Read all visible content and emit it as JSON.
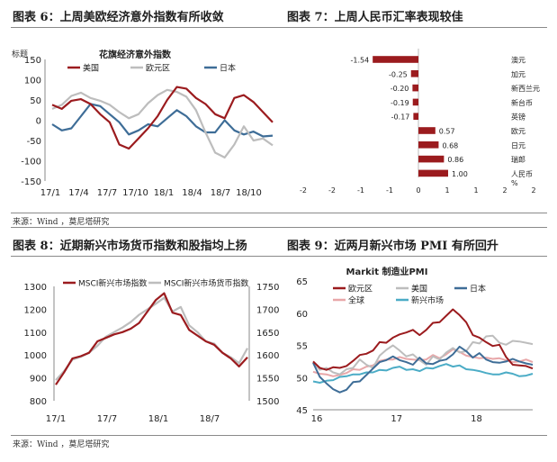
{
  "panels": {
    "p6": {
      "title": "图表 6：上周美欧经济意外指数有所收敛"
    },
    "p7": {
      "title": "图表 7：上周人民币汇率表现较佳"
    },
    "p8": {
      "title": "图表 8：近期新兴市场货币指数和股指均上扬"
    },
    "p9": {
      "title": "图表 9：近两月新兴市场 PMI 有所回升"
    }
  },
  "source_top": "来源：Wind ，莫尼塔研究",
  "source_bottom": "来源：Wind ，莫尼塔研究",
  "colors": {
    "red": "#9B1B1E",
    "gray": "#BDBDBD",
    "blue": "#3E6D97",
    "pink": "#E8A7A9",
    "teal": "#4BACC6"
  },
  "chart_data": [
    {
      "id": "citi-surprise",
      "type": "line",
      "title": "花旗经济意外指数",
      "ylabel": "标题",
      "ylim": [
        -150,
        150
      ],
      "yticks": [
        "150",
        "100",
        "50",
        "0",
        "-50",
        "-100",
        "-150"
      ],
      "xticks": [
        "17/1",
        "17/4",
        "17/7",
        "17/10",
        "18/1",
        "18/4",
        "18/7",
        "18/10"
      ],
      "x": [
        0,
        1,
        2,
        3,
        4,
        5,
        6,
        7,
        8,
        9,
        10,
        11,
        12,
        13,
        14,
        15,
        16,
        17,
        18,
        19,
        20,
        21,
        22,
        23
      ],
      "series": [
        {
          "name": "美国",
          "color": "red",
          "values": [
            38,
            28,
            48,
            52,
            40,
            15,
            -5,
            -60,
            -70,
            -45,
            -20,
            10,
            50,
            82,
            78,
            55,
            40,
            15,
            5,
            55,
            62,
            45,
            20,
            -5
          ]
        },
        {
          "name": "欧元区",
          "color": "gray",
          "values": [
            28,
            38,
            60,
            68,
            55,
            48,
            38,
            20,
            5,
            15,
            42,
            62,
            75,
            70,
            58,
            25,
            -30,
            -80,
            -92,
            -60,
            -15,
            -50,
            -45,
            -62
          ]
        },
        {
          "name": "日本",
          "color": "blue",
          "values": [
            -10,
            -25,
            -20,
            10,
            40,
            35,
            15,
            -5,
            -35,
            -25,
            -10,
            -15,
            5,
            25,
            10,
            -15,
            -30,
            -30,
            0,
            -25,
            -35,
            -28,
            -40,
            -38
          ]
        }
      ]
    },
    {
      "id": "fx-change",
      "type": "bar",
      "orientation": "horizontal",
      "categories": [
        "澳元",
        "加元",
        "新西兰元",
        "新台币",
        "英镑",
        "欧元",
        "日元",
        "瑞郎",
        "人民币"
      ],
      "values": [
        -1.54,
        -0.25,
        -0.2,
        -0.19,
        -0.17,
        0.57,
        0.68,
        0.86,
        1.0
      ],
      "value_labels": [
        "-1.54",
        "-0.25",
        "-0.20",
        "-0.19",
        "-0.17",
        "0.57",
        "0.68",
        "0.86",
        "1.00"
      ],
      "xlim": [
        -2,
        2
      ],
      "xticks": [
        "-2",
        "-2",
        "-1",
        "-1",
        "0",
        "1",
        "1",
        "2",
        "2"
      ],
      "xunit": "%"
    },
    {
      "id": "em-index",
      "type": "line",
      "xticks": [
        "17/1",
        "17/7",
        "18/1",
        "18/7"
      ],
      "yticks_left": [
        "1300",
        "1200",
        "1100",
        "1000",
        "900",
        "800"
      ],
      "yticks_right": [
        "1750",
        "1700",
        "1650",
        "1600",
        "1550",
        "1500"
      ],
      "ylim_left": [
        800,
        1300
      ],
      "ylim_right": [
        1500,
        1750
      ],
      "x": [
        0,
        1,
        2,
        3,
        4,
        5,
        6,
        7,
        8,
        9,
        10,
        11,
        12,
        13,
        14,
        15,
        16,
        17,
        18,
        19,
        20,
        21,
        22,
        23
      ],
      "series": [
        {
          "name": "MSCI新兴市场指数",
          "axis": "left",
          "color": "red",
          "values": [
            870,
            925,
            985,
            995,
            1010,
            1060,
            1075,
            1090,
            1100,
            1115,
            1140,
            1190,
            1240,
            1270,
            1185,
            1175,
            1110,
            1085,
            1060,
            1045,
            1010,
            985,
            950,
            990
          ]
        },
        {
          "name": "MSCI新兴市场货币指数",
          "axis": "right",
          "color": "gray",
          "values": [
            1545,
            1565,
            1590,
            1596,
            1605,
            1620,
            1640,
            1650,
            1660,
            1672,
            1688,
            1700,
            1712,
            1725,
            1695,
            1705,
            1665,
            1650,
            1630,
            1625,
            1605,
            1595,
            1582,
            1615
          ]
        }
      ]
    },
    {
      "id": "markit-pmi",
      "type": "line",
      "title": "Markit 制造业PMI",
      "ylim": [
        45,
        65
      ],
      "yticks": [
        "65",
        "60",
        "55",
        "50",
        "45"
      ],
      "xticks": [
        "16",
        "17",
        "18"
      ],
      "x": [
        0,
        1,
        2,
        3,
        4,
        5,
        6,
        7,
        8,
        9,
        10,
        11,
        12,
        13,
        14,
        15,
        16,
        17,
        18,
        19,
        20,
        21,
        22,
        23,
        24,
        25,
        26,
        27,
        28,
        29,
        30,
        31,
        32,
        33
      ],
      "series": [
        {
          "name": "欧元区",
          "color": "red",
          "values": [
            52.5,
            51.5,
            51.2,
            51.6,
            51.5,
            51.8,
            52.6,
            53.5,
            53.7,
            54.2,
            55.5,
            55.4,
            56.2,
            56.7,
            57.0,
            57.4,
            56.6,
            57.4,
            58.5,
            58.6,
            59.6,
            60.6,
            59.7,
            58.6,
            56.6,
            56.2,
            55.5,
            54.9,
            55.1,
            53.2,
            52.0,
            51.9,
            51.8,
            51.4
          ]
        },
        {
          "name": "美国",
          "color": "gray",
          "values": [
            52.4,
            51.2,
            51.5,
            50.8,
            50.5,
            51.3,
            51.5,
            52.8,
            52.0,
            51.5,
            53.4,
            54.3,
            55.0,
            54.2,
            53.3,
            53.6,
            52.7,
            52.0,
            53.3,
            52.8,
            53.9,
            54.6,
            53.9,
            54.1,
            55.5,
            55.3,
            56.4,
            56.5,
            55.4,
            55.1,
            55.7,
            55.6,
            55.4,
            55.2
          ]
        },
        {
          "name": "日本",
          "color": "blue",
          "values": [
            52.3,
            50.1,
            49.1,
            48.2,
            47.7,
            48.1,
            49.3,
            49.4,
            50.4,
            51.4,
            52.4,
            52.7,
            53.3,
            52.7,
            52.4,
            52.0,
            53.1,
            52.2,
            52.1,
            52.6,
            52.8,
            53.6,
            54.8,
            54.1,
            53.1,
            53.8,
            52.8,
            52.4,
            52.3,
            52.5,
            52.9,
            52.5,
            52.2,
            52.0
          ]
        },
        {
          "name": "全球",
          "color": "pink",
          "values": [
            50.9,
            50.6,
            50.5,
            50.2,
            50.4,
            50.7,
            51.3,
            51.2,
            51.7,
            51.9,
            52.6,
            52.8,
            52.8,
            53.2,
            52.9,
            52.8,
            52.7,
            52.8,
            53.5,
            53.0,
            53.6,
            54.4,
            54.0,
            53.4,
            53.2,
            53.0,
            53.1,
            52.9,
            53.0,
            52.7,
            52.4,
            52.5,
            52.8,
            52.4
          ]
        },
        {
          "name": "新兴市场",
          "color": "teal",
          "values": [
            49.4,
            49.2,
            49.5,
            49.6,
            50.1,
            50.2,
            50.5,
            50.5,
            50.8,
            50.8,
            51.2,
            51.1,
            51.5,
            51.7,
            51.2,
            51.3,
            51.0,
            51.5,
            51.4,
            51.8,
            52.1,
            51.7,
            51.9,
            51.3,
            51.2,
            51.0,
            50.7,
            50.5,
            50.5,
            50.8,
            50.6,
            50.2,
            50.3,
            50.6
          ]
        }
      ]
    }
  ]
}
